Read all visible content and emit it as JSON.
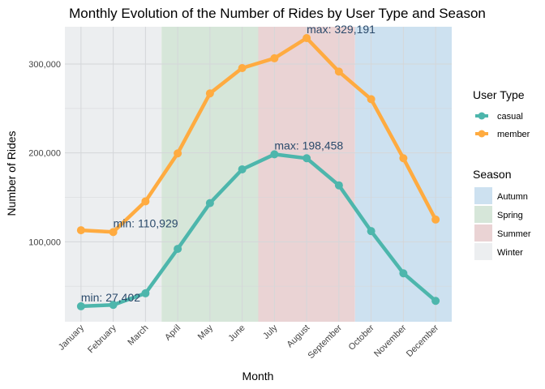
{
  "chart_data": {
    "type": "line",
    "title": "Monthly Evolution of the Number of Rides by User Type and Season",
    "xlabel": "Month",
    "ylabel": "Number of Rides",
    "categories": [
      "January",
      "February",
      "March",
      "April",
      "May",
      "June",
      "July",
      "August",
      "September",
      "October",
      "November",
      "December"
    ],
    "ylim": [
      10000,
      342000
    ],
    "yticks": [
      100000,
      200000,
      300000
    ],
    "ytick_labels": [
      "100,000",
      "200,000",
      "300,000"
    ],
    "grid": true,
    "series": [
      {
        "name": "casual",
        "color": "#4db6ac",
        "values": [
          27402,
          29000,
          42000,
          92000,
          143500,
          181500,
          198458,
          194000,
          163500,
          112000,
          64500,
          33500
        ]
      },
      {
        "name": "member",
        "color": "#ffab40",
        "values": [
          113000,
          110929,
          145500,
          199500,
          267000,
          295500,
          306500,
          329191,
          291500,
          260500,
          194000,
          125000
        ]
      }
    ],
    "seasons": [
      {
        "name": "Winter",
        "color": "#eceef0",
        "start": "January",
        "end": "March"
      },
      {
        "name": "Spring",
        "color": "#d6e6d9",
        "start": "April",
        "end": "June"
      },
      {
        "name": "Summer",
        "color": "#ead3d4",
        "start": "July",
        "end": "September"
      },
      {
        "name": "Autumn",
        "color": "#cde1f0",
        "start": "October",
        "end": "December"
      }
    ],
    "annotations": [
      {
        "text": "max: 329,191",
        "series": "member",
        "month": "August",
        "value": 329191
      },
      {
        "text": "min: 110,929",
        "series": "member",
        "month": "February",
        "value": 110929
      },
      {
        "text": "max: 198,458",
        "series": "casual",
        "month": "July",
        "value": 198458
      },
      {
        "text": "min: 27,402",
        "series": "casual",
        "month": "January",
        "value": 27402
      }
    ],
    "annotation_color": "#2b4a6b",
    "legend": {
      "placement": "right",
      "user_type_title": "User Type",
      "user_types": [
        "casual",
        "member"
      ],
      "season_title": "Season",
      "season_order": [
        "Autumn",
        "Spring",
        "Summer",
        "Winter"
      ]
    }
  }
}
